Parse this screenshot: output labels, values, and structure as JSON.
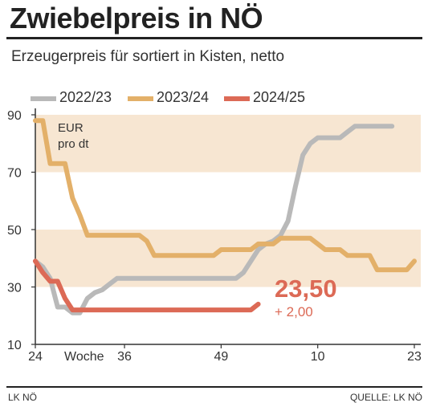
{
  "header": {
    "title": "Zwiebelpreis in NÖ",
    "subtitle": "Erzeugerpreis für sortiert in Kisten, netto"
  },
  "footer": {
    "left": "LK NÖ",
    "right": "QUELLE: LK NÖ"
  },
  "colors": {
    "band": "#f7e6d2",
    "s2022": "#b9b9b9",
    "s2023": "#e3b069",
    "s2024": "#dc6a56",
    "axis": "#333333"
  },
  "chart_data": {
    "type": "line",
    "unit_label": [
      "EUR",
      "pro dt"
    ],
    "xlabel": "Woche",
    "ylim": [
      10,
      90
    ],
    "y_ticks": [
      10,
      30,
      50,
      70,
      90
    ],
    "shaded_bands": [
      [
        30,
        50
      ],
      [
        70,
        90
      ]
    ],
    "x_ticks": [
      {
        "index": 0,
        "label": "24"
      },
      {
        "index": 12,
        "label": "36"
      },
      {
        "index": 25,
        "label": "49"
      },
      {
        "index": 38,
        "label": "10"
      },
      {
        "index": 51,
        "label": "23"
      }
    ],
    "legend": {
      "placement": "top-left"
    },
    "series": [
      {
        "name": "2022/23",
        "values": [
          39,
          37,
          33,
          23,
          23,
          21,
          21,
          26,
          28,
          29,
          31,
          33,
          33,
          33,
          33,
          33,
          33,
          33,
          33,
          33,
          33,
          33,
          33,
          33,
          33,
          33,
          33,
          33,
          35,
          39,
          43,
          45,
          46,
          48,
          53,
          65,
          76,
          80,
          82,
          82,
          82,
          82,
          84,
          86,
          86,
          86,
          86,
          86,
          86
        ]
      },
      {
        "name": "2023/24",
        "values": [
          88,
          88,
          73,
          73,
          73,
          61,
          55,
          48,
          48,
          48,
          48,
          48,
          48,
          48,
          48,
          46,
          41,
          41,
          41,
          41,
          41,
          41,
          41,
          41,
          41,
          43,
          43,
          43,
          43,
          43,
          45,
          45,
          45,
          47,
          47,
          47,
          47,
          47,
          45,
          43,
          43,
          43,
          41,
          41,
          41,
          41,
          36,
          36,
          36,
          36,
          36,
          39
        ]
      },
      {
        "name": "2024/25",
        "values": [
          39,
          35,
          32,
          32,
          26,
          22,
          22,
          22,
          22,
          22,
          22,
          22,
          22,
          22,
          22,
          22,
          22,
          22,
          22,
          22,
          22,
          22,
          22,
          22,
          22,
          22,
          22,
          22,
          22,
          22,
          24
        ]
      }
    ],
    "annotation": {
      "value": "23,50",
      "change": "+ 2,00"
    }
  }
}
